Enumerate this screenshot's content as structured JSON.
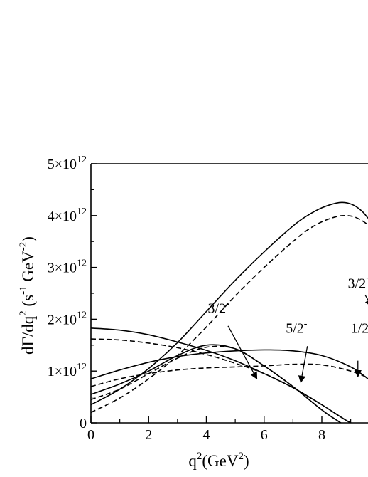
{
  "chart_data": {
    "type": "line",
    "title": "",
    "xlabel": {
      "main": "q",
      "sup": "2",
      "tail": "(GeV",
      "tail_sup": "2",
      "close": ")"
    },
    "ylabel": {
      "p1": "dΓ/dq",
      "p1_sup": "2",
      "p2": " (s",
      "p2_sup": "-1",
      "p3": " GeV",
      "p3_sup": "-2",
      "p4": ")"
    },
    "xlim": [
      0,
      9.6
    ],
    "ylim": [
      0,
      5000000000000.0
    ],
    "x_ticks": [
      "0",
      "2",
      "4",
      "6",
      "8"
    ],
    "x_tick_values": [
      0,
      2,
      4,
      6,
      8
    ],
    "y_ticks": [
      {
        "value": 0,
        "mant": "0",
        "exp": ""
      },
      {
        "value": 1000000000000.0,
        "mant": "1×10",
        "exp": "12"
      },
      {
        "value": 2000000000000.0,
        "mant": "2×10",
        "exp": "12"
      },
      {
        "value": 3000000000000.0,
        "mant": "3×10",
        "exp": "12"
      },
      {
        "value": 4000000000000.0,
        "mant": "4×10",
        "exp": "12"
      },
      {
        "value": 5000000000000.0,
        "mant": "5×10",
        "exp": "12"
      }
    ],
    "grid": false,
    "series": [
      {
        "style": "solid",
        "x": [
          0,
          1,
          2,
          3,
          4,
          5,
          6,
          7,
          7.5,
          8,
          8.5,
          8.8,
          9.1,
          9.4,
          9.6
        ],
        "y": [
          350000000000.0,
          650000000000.0,
          1050000000000.0,
          1550000000000.0,
          2150000000000.0,
          2750000000000.0,
          3300000000000.0,
          3800000000000.0,
          4000000000000.0,
          4150000000000.0,
          4240000000000.0,
          4250000000000.0,
          4200000000000.0,
          4080000000000.0,
          3950000000000.0
        ]
      },
      {
        "style": "dashed",
        "x": [
          0,
          1,
          2,
          3,
          4,
          5,
          6,
          7,
          7.5,
          8,
          8.5,
          8.8,
          9.1,
          9.4,
          9.6
        ],
        "y": [
          200000000000.0,
          480000000000.0,
          850000000000.0,
          1300000000000.0,
          1850000000000.0,
          2450000000000.0,
          3000000000000.0,
          3500000000000.0,
          3720000000000.0,
          3880000000000.0,
          3980000000000.0,
          4000000000000.0,
          3980000000000.0,
          3900000000000.0,
          3820000000000.0
        ]
      },
      {
        "style": "solid",
        "x": [
          0,
          1,
          2,
          3,
          4,
          5,
          6,
          7,
          8,
          9,
          9.6
        ],
        "y": [
          1830000000000.0,
          1790000000000.0,
          1700000000000.0,
          1560000000000.0,
          1400000000000.0,
          1200000000000.0,
          950000000000.0,
          680000000000.0,
          350000000000.0,
          0,
          -100000000000.0
        ]
      },
      {
        "style": "dashed",
        "x": [
          0,
          1,
          2,
          3,
          4,
          5,
          6,
          7,
          8,
          9,
          9.6
        ],
        "y": [
          1620000000000.0,
          1600000000000.0,
          1540000000000.0,
          1450000000000.0,
          1320000000000.0,
          1150000000000.0,
          950000000000.0,
          680000000000.0,
          350000000000.0,
          0,
          -100000000000.0
        ]
      },
      {
        "style": "solid",
        "x": [
          0,
          1,
          2,
          3,
          4,
          5,
          6,
          7,
          8,
          8.6,
          9,
          9.6
        ],
        "y": [
          550000000000.0,
          750000000000.0,
          1000000000000.0,
          1300000000000.0,
          1500000000000.0,
          1430000000000.0,
          1100000000000.0,
          700000000000.0,
          250000000000.0,
          20000000000.0,
          -120000000000.0,
          -300000000000.0
        ]
      },
      {
        "style": "dashed",
        "x": [
          0,
          1,
          2,
          3,
          4,
          5,
          6,
          7,
          8,
          8.6,
          9,
          9.6
        ],
        "y": [
          450000000000.0,
          650000000000.0,
          950000000000.0,
          1250000000000.0,
          1460000000000.0,
          1430000000000.0,
          1100000000000.0,
          700000000000.0,
          250000000000.0,
          20000000000.0,
          -120000000000.0,
          -300000000000.0
        ]
      },
      {
        "style": "solid",
        "x": [
          0,
          1,
          2,
          3,
          4,
          5,
          6,
          7,
          8,
          9,
          9.6
        ],
        "y": [
          850000000000.0,
          1020000000000.0,
          1170000000000.0,
          1280000000000.0,
          1350000000000.0,
          1390000000000.0,
          1410000000000.0,
          1390000000000.0,
          1300000000000.0,
          1080000000000.0,
          850000000000.0
        ]
      },
      {
        "style": "dashed",
        "x": [
          0,
          1,
          2,
          3,
          4,
          5,
          6,
          7,
          8,
          9,
          9.6
        ],
        "y": [
          700000000000.0,
          850000000000.0,
          950000000000.0,
          1020000000000.0,
          1060000000000.0,
          1080000000000.0,
          1100000000000.0,
          1130000000000.0,
          1120000000000.0,
          1000000000000.0,
          870000000000.0
        ]
      }
    ],
    "annotations": [
      {
        "name": "label-3-2-minus",
        "base": "3/2",
        "sup": "-",
        "x": 4.05,
        "y": 2120000000000.0,
        "arrow_from": [
          4.75,
          1870000000000.0
        ],
        "arrow_to": [
          5.75,
          850000000000.0
        ]
      },
      {
        "name": "label-5-2-minus",
        "base": "5/2",
        "sup": "-",
        "x": 6.75,
        "y": 1740000000000.0,
        "arrow_from": [
          7.5,
          1480000000000.0
        ],
        "arrow_to": [
          7.27,
          780000000000.0
        ]
      },
      {
        "name": "label-1-2",
        "base": "1/2",
        "sup": "",
        "x": 9.0,
        "y": 1740000000000.0,
        "arrow_from": [
          9.25,
          1200000000000.0
        ],
        "arrow_to": [
          9.25,
          890000000000.0
        ]
      },
      {
        "name": "label-3-2-plus",
        "base": "3/2",
        "sup": "+",
        "x": 8.9,
        "y": 2600000000000.0,
        "arrow_from": [
          9.5,
          2470000000000.0
        ],
        "arrow_to": [
          9.72,
          2250000000000.0
        ]
      }
    ]
  }
}
